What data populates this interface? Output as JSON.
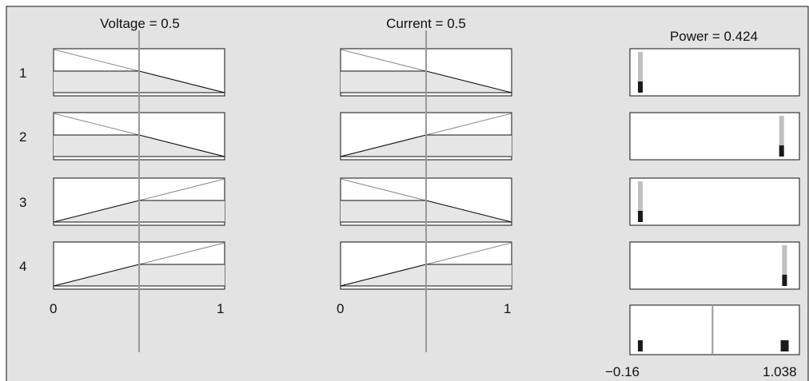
{
  "inputs": [
    {
      "name": "Voltage",
      "value": "0.5",
      "title": "Voltage = 0.5",
      "range": [
        0,
        1
      ],
      "range_labels": [
        "0",
        "1"
      ]
    },
    {
      "name": "Current",
      "value": "0.5",
      "title": "Current = 0.5",
      "range": [
        0,
        1
      ],
      "range_labels": [
        "0",
        "1"
      ]
    }
  ],
  "output": {
    "name": "Power",
    "value": "0.424",
    "title": "Power = 0.424",
    "range": [
      -0.16,
      1.038
    ],
    "range_labels": [
      "−0.16",
      "1.038"
    ]
  },
  "rules": [
    {
      "label": "1",
      "voltage_mf": "decreasing",
      "current_mf": "decreasing",
      "firing": 0.5,
      "output_bar": 0.0
    },
    {
      "label": "2",
      "voltage_mf": "decreasing",
      "current_mf": "increasing",
      "firing": 0.5,
      "output_bar": 0.95
    },
    {
      "label": "3",
      "voltage_mf": "increasing",
      "current_mf": "decreasing",
      "firing": 0.5,
      "output_bar": 0.0
    },
    {
      "label": "4",
      "voltage_mf": "increasing",
      "current_mf": "increasing",
      "firing": 0.5,
      "output_bar": 0.97
    }
  ],
  "aggregate": {
    "bars": [
      0.0,
      0.96
    ],
    "firing": 0.5
  },
  "colors": {
    "panel_background": "#e3e3e3",
    "frame": "#111111",
    "membership_line": "#8a8a8a",
    "fill": "#e6e6e6",
    "indicator": "#999999",
    "output_gray": "#c0c0c0",
    "output_black": "#1a1a1a"
  }
}
